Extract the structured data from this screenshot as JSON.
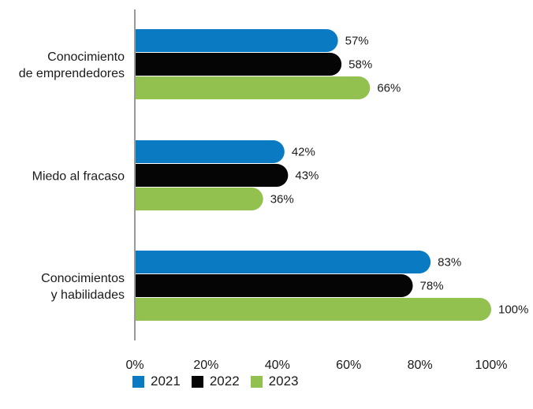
{
  "chart_data": {
    "type": "bar",
    "orientation": "horizontal",
    "categories": [
      [
        "Conocimiento",
        "de emprendedores"
      ],
      [
        "Miedo al fracaso"
      ],
      [
        "Conocimientos",
        "y habilidades"
      ]
    ],
    "series": [
      {
        "name": "2021",
        "color": "#0a7bc2",
        "values": [
          57,
          42,
          83
        ],
        "labels": [
          "57%",
          "42%",
          "83%"
        ]
      },
      {
        "name": "2022",
        "color": "#050505",
        "values": [
          58,
          43,
          78
        ],
        "labels": [
          "58%",
          "43%",
          "78%"
        ]
      },
      {
        "name": "2023",
        "color": "#92c150",
        "values": [
          66,
          36,
          100
        ],
        "labels": [
          "66%",
          "36%",
          "100%"
        ]
      }
    ],
    "xlim": [
      0,
      100
    ],
    "xticks": [
      0,
      20,
      40,
      60,
      80,
      100
    ],
    "xtick_labels": [
      "0%",
      "20%",
      "40%",
      "60%",
      "80%",
      "100%"
    ],
    "grid": false,
    "legend_position": "bottom"
  }
}
